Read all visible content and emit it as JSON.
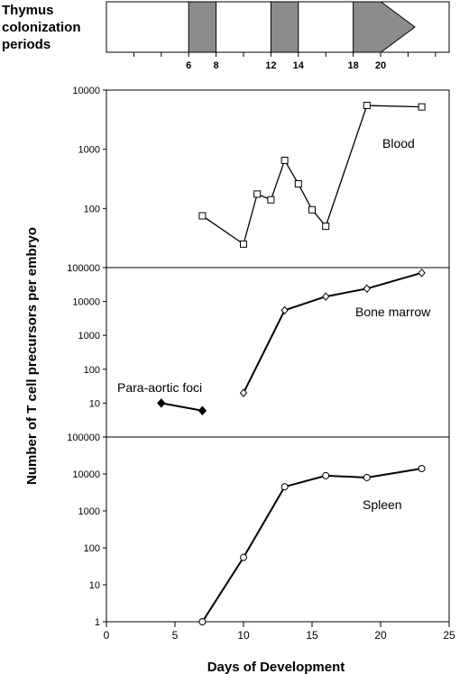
{
  "colonization": {
    "title_lines": [
      "Thymus",
      "colonization",
      "periods"
    ],
    "shaded_periods": [
      [
        6,
        8
      ],
      [
        12,
        14
      ],
      [
        18,
        22.5
      ]
    ],
    "tick_labels": [
      "6",
      "8",
      "12",
      "14",
      "18",
      "20"
    ],
    "tick_values": [
      6,
      8,
      12,
      14,
      18,
      20
    ],
    "minor_ticks": [
      2,
      4,
      6,
      8,
      10,
      12,
      14,
      16,
      18,
      20,
      22,
      24
    ],
    "fill_color": "#8c8c8c"
  },
  "chart_data": [
    {
      "type": "line",
      "panel": "blood",
      "label": "Blood",
      "marker": "open-square",
      "yscale": "log",
      "ylim": [
        10,
        10000
      ],
      "y_tick_labels": [
        "100",
        "1000",
        "10000"
      ],
      "series": [
        {
          "name": "Blood",
          "x": [
            7,
            10,
            11,
            12,
            13,
            14,
            15,
            16,
            19,
            23
          ],
          "y": [
            75,
            25,
            175,
            140,
            650,
            260,
            95,
            50,
            5500,
            5200
          ]
        }
      ]
    },
    {
      "type": "line",
      "panel": "bone-marrow",
      "yscale": "log",
      "ylim": [
        1,
        100000
      ],
      "y_tick_labels": [
        "10",
        "100",
        "1000",
        "10000",
        "100000"
      ],
      "series": [
        {
          "name": "Bone marrow",
          "marker": "open-diamond",
          "x": [
            10,
            13,
            16,
            19,
            23
          ],
          "y": [
            20,
            5500,
            14000,
            24000,
            70000
          ]
        },
        {
          "name": "Para-aortic foci",
          "marker": "filled-diamond",
          "x": [
            4,
            7
          ],
          "y": [
            10,
            6
          ]
        }
      ]
    },
    {
      "type": "line",
      "panel": "spleen",
      "label": "Spleen",
      "marker": "open-circle",
      "yscale": "log",
      "ylim": [
        1,
        100000
      ],
      "y_tick_labels": [
        "1",
        "10",
        "100",
        "1000",
        "10000",
        "100000"
      ],
      "series": [
        {
          "name": "Spleen",
          "x": [
            7,
            10,
            13,
            16,
            19,
            23
          ],
          "y": [
            1,
            55,
            4500,
            9000,
            8000,
            14000
          ]
        }
      ]
    }
  ],
  "x_axis": {
    "xlim": [
      0,
      25
    ],
    "tick_values": [
      0,
      5,
      10,
      15,
      20,
      25
    ],
    "tick_labels": [
      "0",
      "5",
      "10",
      "15",
      "20",
      "25"
    ],
    "label": "Days of Development"
  },
  "y_axis_label": "Number of T cell precursors per embryo"
}
